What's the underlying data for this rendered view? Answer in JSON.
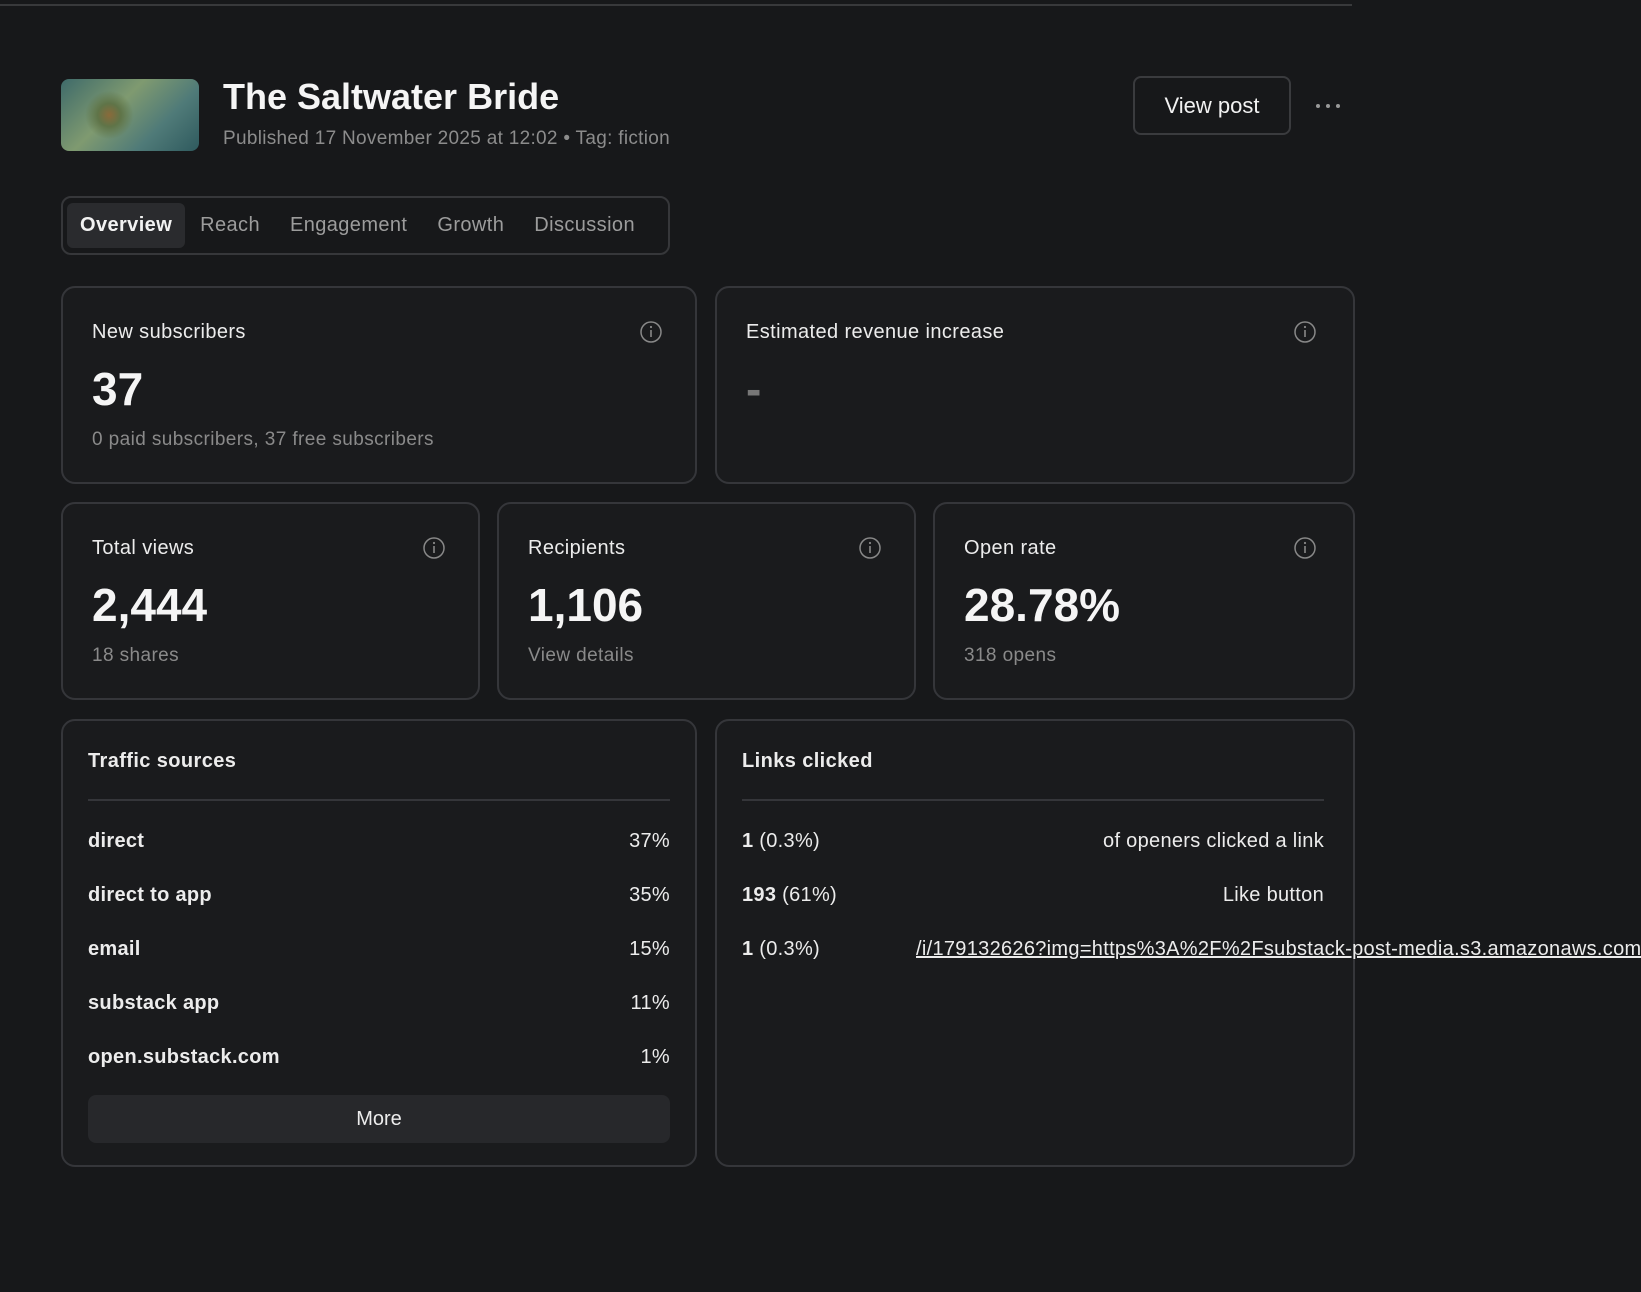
{
  "header": {
    "title": "The Saltwater Bride",
    "meta": "Published 17 November 2025 at 12:02 • Tag: fiction",
    "view_post": "View post"
  },
  "tabs": [
    "Overview",
    "Reach",
    "Engagement",
    "Growth",
    "Discussion"
  ],
  "cards": [
    {
      "label": "New subscribers",
      "value": "37",
      "note": "0 paid subscribers, 37 free subscribers"
    },
    {
      "label": "Estimated revenue increase",
      "value": "-"
    },
    {
      "label": "Total views",
      "value": "2,444",
      "note": "18 shares"
    },
    {
      "label": "Recipients",
      "value": "1,106",
      "note": "View details"
    },
    {
      "label": "Open rate",
      "value": "28.78%",
      "note": "318 opens"
    }
  ],
  "traffic": {
    "title": "Traffic sources",
    "rows": [
      [
        "direct",
        "37%"
      ],
      [
        "direct to app",
        "35%"
      ],
      [
        "email",
        "15%"
      ],
      [
        "substack app",
        "11%"
      ],
      [
        "open.substack.com",
        "1%"
      ]
    ],
    "button": "More"
  },
  "links": {
    "title": "Links clicked",
    "rows": [
      {
        "count": "1",
        "pct": "(0.3%)",
        "label": "of openers clicked a link"
      },
      {
        "count": "193",
        "pct": "(61%)",
        "label": "Like button"
      },
      {
        "count": "1",
        "pct": "(0.3%)",
        "label": "/i/179132626?img=https%3A%2F%2Fsubstack-post-media.s3.amazonaws.com"
      }
    ]
  }
}
